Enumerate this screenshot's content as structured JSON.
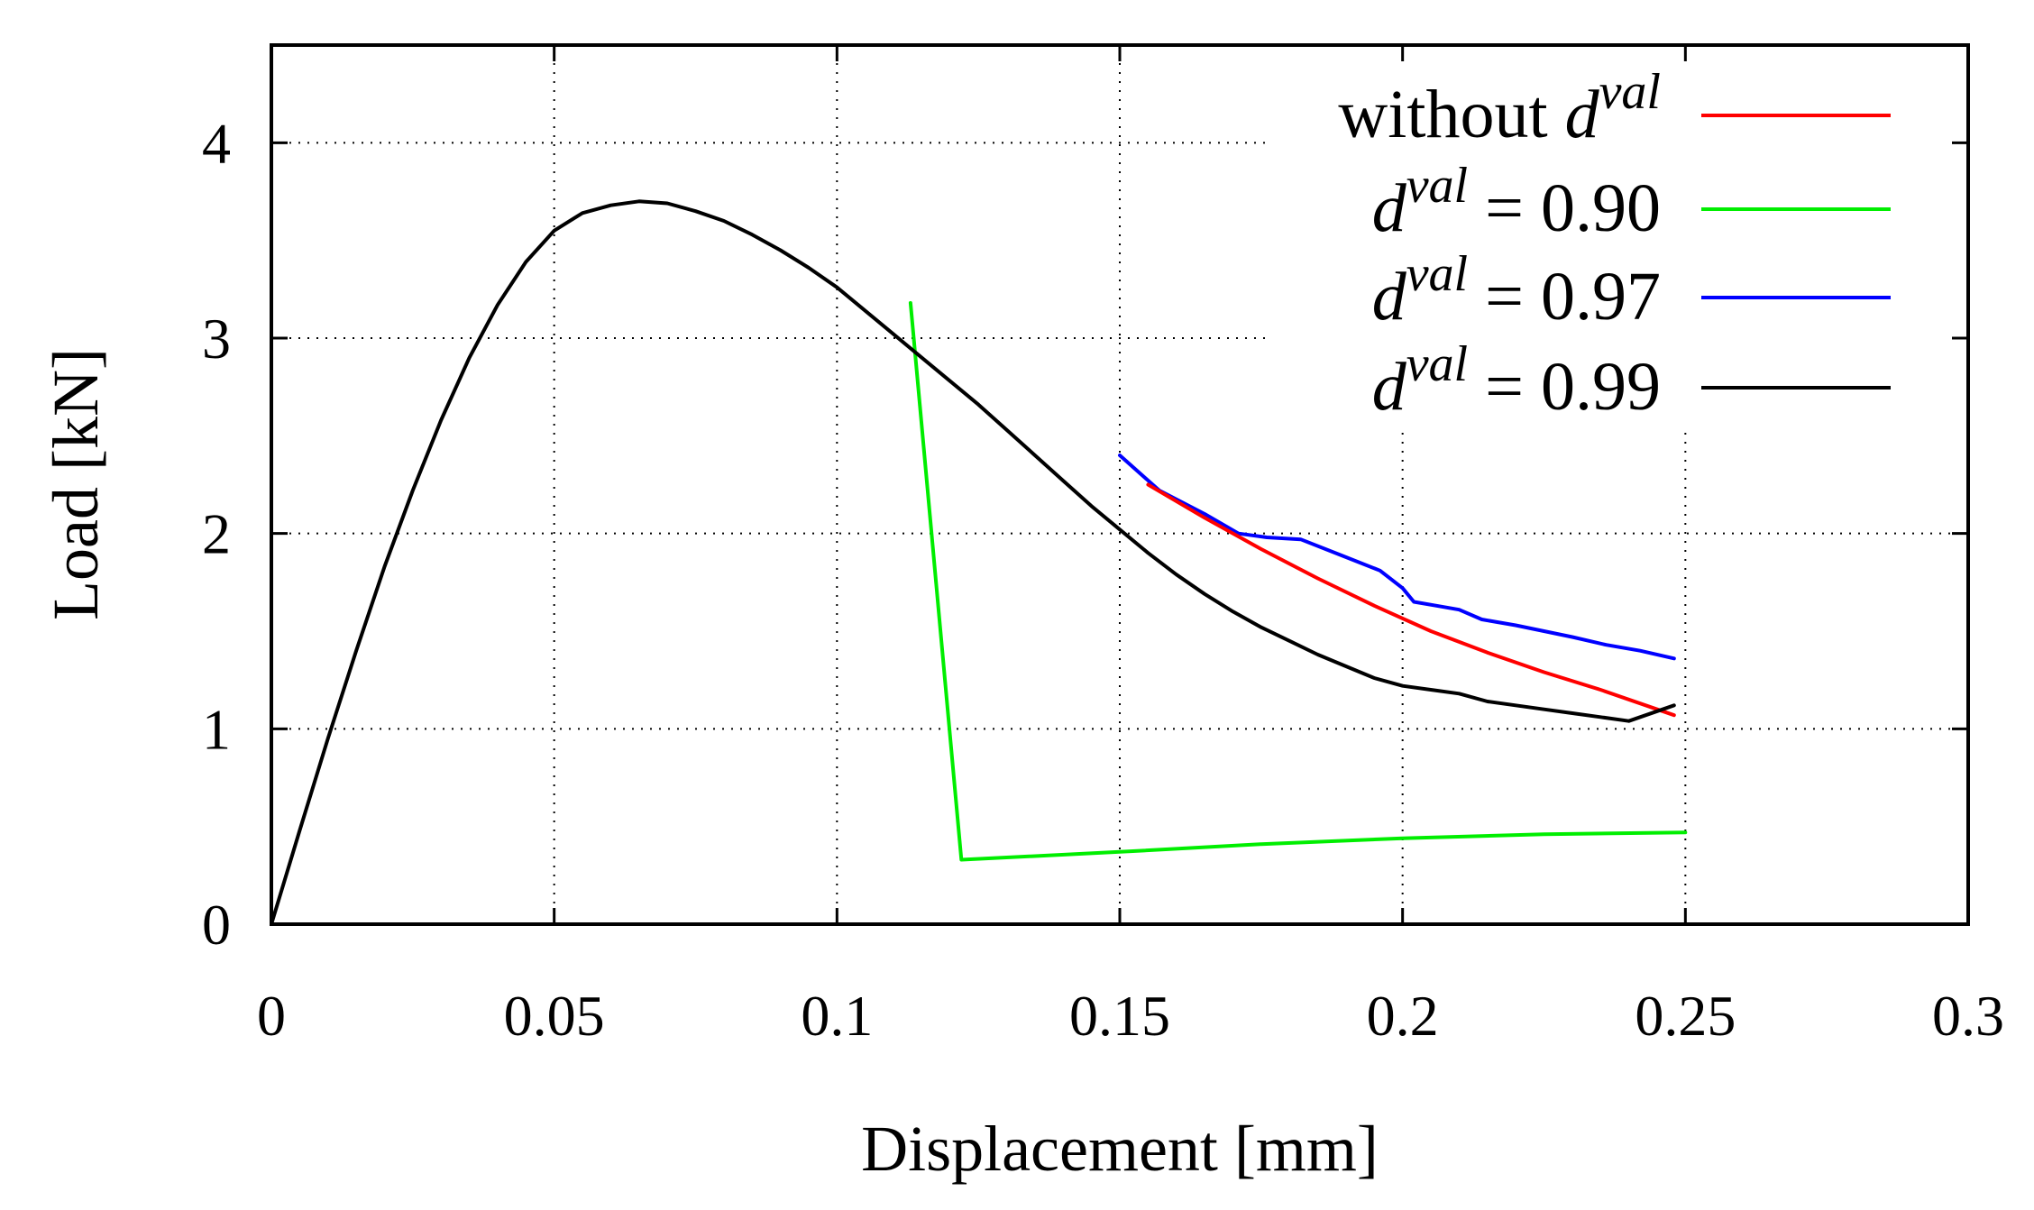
{
  "chart_data": {
    "type": "line",
    "xlabel": "Displacement [mm]",
    "ylabel": "Load [kN]",
    "xlim": [
      0,
      0.3
    ],
    "ylim": [
      0,
      4.5
    ],
    "xticks": [
      0,
      0.05,
      0.1,
      0.15,
      0.2,
      0.25,
      0.3
    ],
    "xtick_labels": [
      "0",
      "0.05",
      "0.1",
      "0.15",
      "0.2",
      "0.25",
      "0.3"
    ],
    "yticks": [
      0,
      1,
      2,
      3,
      4
    ],
    "ytick_labels": [
      "0",
      "1",
      "2",
      "3",
      "4"
    ],
    "grid": true,
    "legend_position": "top-right",
    "series": [
      {
        "name": "without d^val",
        "legend": {
          "prefix": "without ",
          "var": "d",
          "sup": "val",
          "suffix": ""
        },
        "color": "#ff0000",
        "x": [
          0.155,
          0.165,
          0.175,
          0.185,
          0.195,
          0.205,
          0.215,
          0.225,
          0.235,
          0.245,
          0.248
        ],
        "y": [
          2.25,
          2.08,
          1.92,
          1.77,
          1.63,
          1.5,
          1.39,
          1.29,
          1.2,
          1.1,
          1.07
        ]
      },
      {
        "name": "d^val = 0.90",
        "legend": {
          "prefix": "",
          "var": "d",
          "sup": "val",
          "suffix": " = 0.90"
        },
        "color": "#00ee00",
        "x": [
          0.113,
          0.122,
          0.15,
          0.175,
          0.2,
          0.225,
          0.25
        ],
        "y": [
          3.18,
          0.33,
          0.37,
          0.41,
          0.44,
          0.46,
          0.47
        ]
      },
      {
        "name": "d^val = 0.97",
        "legend": {
          "prefix": "",
          "var": "d",
          "sup": "val",
          "suffix": " = 0.97"
        },
        "color": "#0000ff",
        "x": [
          0.15,
          0.157,
          0.165,
          0.171,
          0.176,
          0.182,
          0.189,
          0.196,
          0.2,
          0.202,
          0.206,
          0.21,
          0.214,
          0.22,
          0.225,
          0.23,
          0.236,
          0.242,
          0.248
        ],
        "y": [
          2.4,
          2.22,
          2.1,
          2.0,
          1.98,
          1.97,
          1.89,
          1.81,
          1.72,
          1.65,
          1.63,
          1.61,
          1.56,
          1.53,
          1.5,
          1.47,
          1.43,
          1.4,
          1.36
        ]
      },
      {
        "name": "d^val = 0.99",
        "legend": {
          "prefix": "",
          "var": "d",
          "sup": "val",
          "suffix": " = 0.99"
        },
        "color": "#000000",
        "x": [
          0,
          0.005,
          0.01,
          0.015,
          0.02,
          0.025,
          0.03,
          0.035,
          0.04,
          0.045,
          0.05,
          0.055,
          0.06,
          0.065,
          0.07,
          0.075,
          0.08,
          0.085,
          0.09,
          0.095,
          0.1,
          0.105,
          0.11,
          0.115,
          0.12,
          0.125,
          0.13,
          0.135,
          0.14,
          0.145,
          0.15,
          0.155,
          0.16,
          0.165,
          0.17,
          0.175,
          0.18,
          0.185,
          0.19,
          0.195,
          0.2,
          0.205,
          0.21,
          0.215,
          0.22,
          0.225,
          0.23,
          0.235,
          0.24,
          0.248
        ],
        "y": [
          0,
          0.48,
          0.95,
          1.4,
          1.83,
          2.22,
          2.58,
          2.9,
          3.17,
          3.39,
          3.55,
          3.64,
          3.68,
          3.7,
          3.69,
          3.65,
          3.6,
          3.53,
          3.45,
          3.36,
          3.26,
          3.14,
          3.02,
          2.9,
          2.78,
          2.66,
          2.53,
          2.4,
          2.27,
          2.14,
          2.02,
          1.9,
          1.79,
          1.69,
          1.6,
          1.52,
          1.45,
          1.38,
          1.32,
          1.26,
          1.22,
          1.2,
          1.18,
          1.14,
          1.12,
          1.1,
          1.08,
          1.06,
          1.04,
          1.12
        ]
      }
    ]
  }
}
